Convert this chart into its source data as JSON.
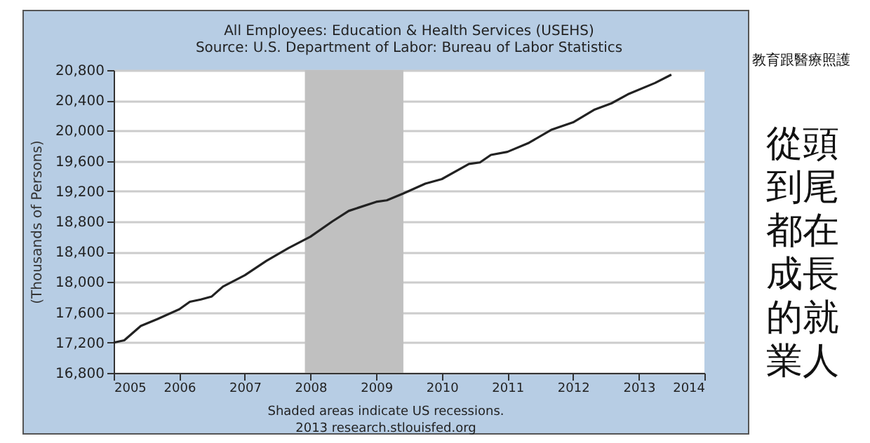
{
  "chart_data": {
    "type": "line",
    "title": "All Employees: Education & Health Services (USEHS)",
    "subtitle": "Source: U.S. Department of Labor: Bureau of Labor Statistics",
    "ylabel": "(Thousands of Persons)",
    "x": [
      "2005-01",
      "2005-03",
      "2005-06",
      "2005-09",
      "2006-01",
      "2006-03",
      "2006-05",
      "2006-07",
      "2006-09",
      "2007-01",
      "2007-05",
      "2007-09",
      "2008-01",
      "2008-05",
      "2008-08",
      "2009-01",
      "2009-03",
      "2009-06",
      "2009-10",
      "2010-01",
      "2010-06",
      "2010-08",
      "2010-10",
      "2011-01",
      "2011-05",
      "2011-09",
      "2012-01",
      "2012-05",
      "2012-08",
      "2012-11",
      "2013-04",
      "2013-07"
    ],
    "series": [
      {
        "color": "#222222",
        "values": [
          17200,
          17230,
          17420,
          17510,
          17640,
          17740,
          17770,
          17810,
          17940,
          18090,
          18280,
          18450,
          18600,
          18800,
          18940,
          19060,
          19080,
          19170,
          19300,
          19360,
          19560,
          19580,
          19680,
          19720,
          19840,
          20010,
          20110,
          20280,
          20360,
          20480,
          20630,
          20740
        ]
      }
    ],
    "xlim": [
      "2005",
      "2014"
    ],
    "xticks": [
      "2005",
      "2006",
      "2007",
      "2008",
      "2009",
      "2010",
      "2011",
      "2012",
      "2013",
      "2014"
    ],
    "ylim": [
      16800,
      20800
    ],
    "yticks": [
      {
        "value": 16800,
        "label": "16,800"
      },
      {
        "value": 17200,
        "label": "17,200"
      },
      {
        "value": 17600,
        "label": "17,600"
      },
      {
        "value": 18000,
        "label": "18,000"
      },
      {
        "value": 18400,
        "label": "18,400"
      },
      {
        "value": 18800,
        "label": "18,800"
      },
      {
        "value": 19200,
        "label": "19,200"
      },
      {
        "value": 19600,
        "label": "19,600"
      },
      {
        "value": 20000,
        "label": "20,000"
      },
      {
        "value": 20400,
        "label": "20,400"
      },
      {
        "value": 20800,
        "label": "20,800"
      }
    ],
    "grid": "y",
    "bands": [
      {
        "axis": "x",
        "from": "2007-12",
        "to": "2009-06",
        "color": "#c0c0c0"
      }
    ],
    "annotations": [
      "Shaded areas indicate US recessions.",
      "2013 research.stlouisfed.org",
      "教育跟醫療照護",
      "從頭到尾都在成長的就業人"
    ]
  }
}
